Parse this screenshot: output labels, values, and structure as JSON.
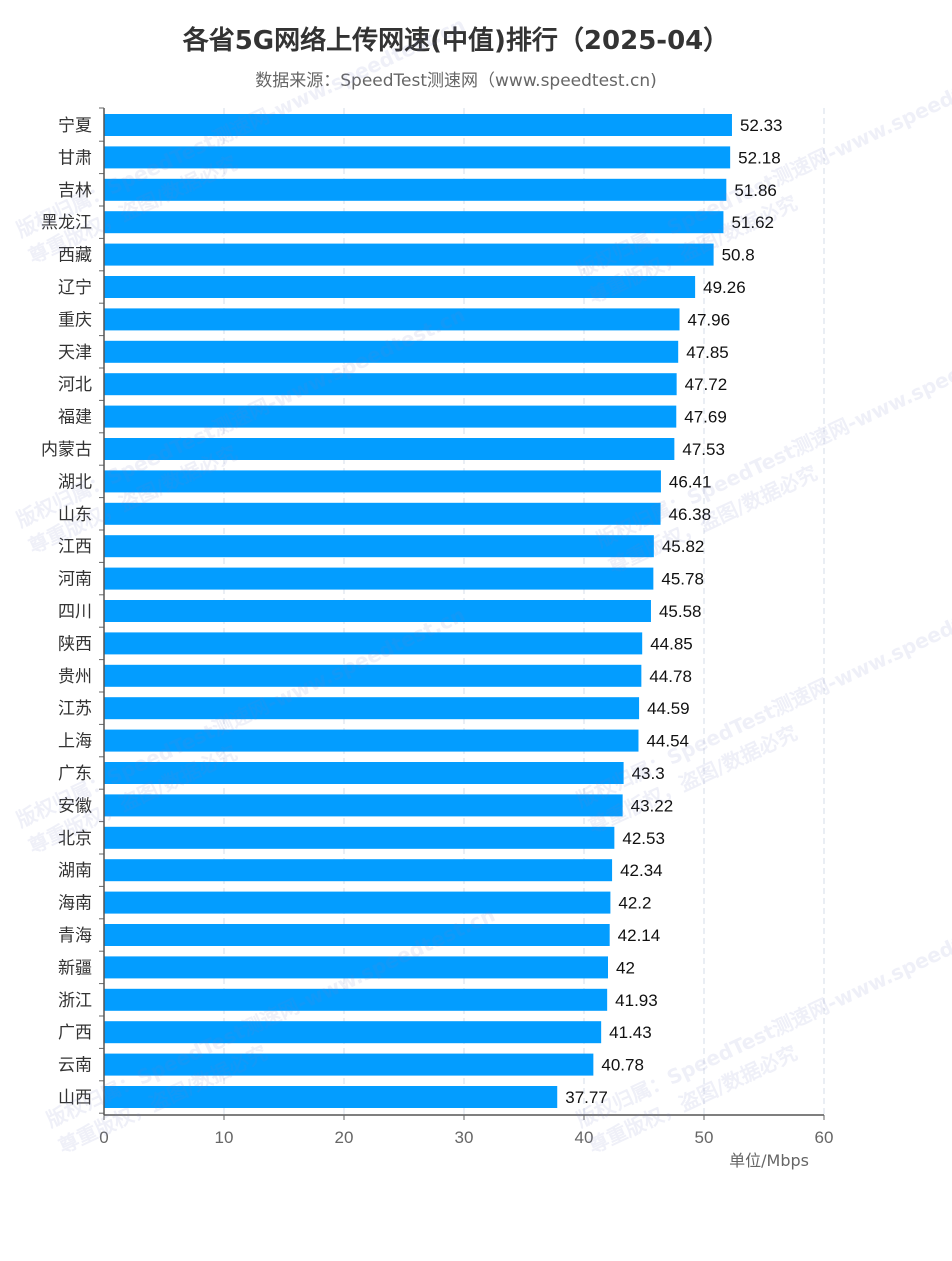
{
  "title": "各省5G网络上传网速(中值)排行（2025-04）",
  "subtitle": "数据来源：SpeedTest测速网（www.speedtest.cn)",
  "watermark_line1": "版权归属：SpeedTest测速网-www.speedtest.cn",
  "watermark_line2": "尊重版权，盗图/数据必究",
  "chart_data": {
    "type": "bar",
    "orientation": "horizontal",
    "title": "各省5G网络上传网速(中值)排行（2025-04）",
    "unit_label": "单位/Mbps",
    "xlim": [
      0,
      60
    ],
    "x_ticks": [
      "0",
      "10",
      "20",
      "30",
      "40",
      "50",
      "60"
    ],
    "bar_color": "#039dff",
    "grid": "dashed vertical lines",
    "categories": [
      "宁夏",
      "甘肃",
      "吉林",
      "黑龙江",
      "西藏",
      "辽宁",
      "重庆",
      "天津",
      "河北",
      "福建",
      "内蒙古",
      "湖北",
      "山东",
      "江西",
      "河南",
      "四川",
      "陕西",
      "贵州",
      "江苏",
      "上海",
      "广东",
      "安徽",
      "北京",
      "湖南",
      "海南",
      "青海",
      "新疆",
      "浙江",
      "广西",
      "云南",
      "山西"
    ],
    "values": [
      52.33,
      52.18,
      51.86,
      51.62,
      50.8,
      49.26,
      47.96,
      47.85,
      47.72,
      47.69,
      47.53,
      46.41,
      46.38,
      45.82,
      45.78,
      45.58,
      44.85,
      44.78,
      44.59,
      44.54,
      43.3,
      43.22,
      42.53,
      42.34,
      42.2,
      42.14,
      42,
      41.93,
      41.43,
      40.78,
      37.77
    ],
    "value_labels": [
      "52.33",
      "52.18",
      "51.86",
      "51.62",
      "50.8",
      "49.26",
      "47.96",
      "47.85",
      "47.72",
      "47.69",
      "47.53",
      "46.41",
      "46.38",
      "45.82",
      "45.78",
      "45.58",
      "44.85",
      "44.78",
      "44.59",
      "44.54",
      "43.3",
      "43.22",
      "42.53",
      "42.34",
      "42.2",
      "42.14",
      "42",
      "41.93",
      "41.43",
      "40.78",
      "37.77"
    ]
  }
}
